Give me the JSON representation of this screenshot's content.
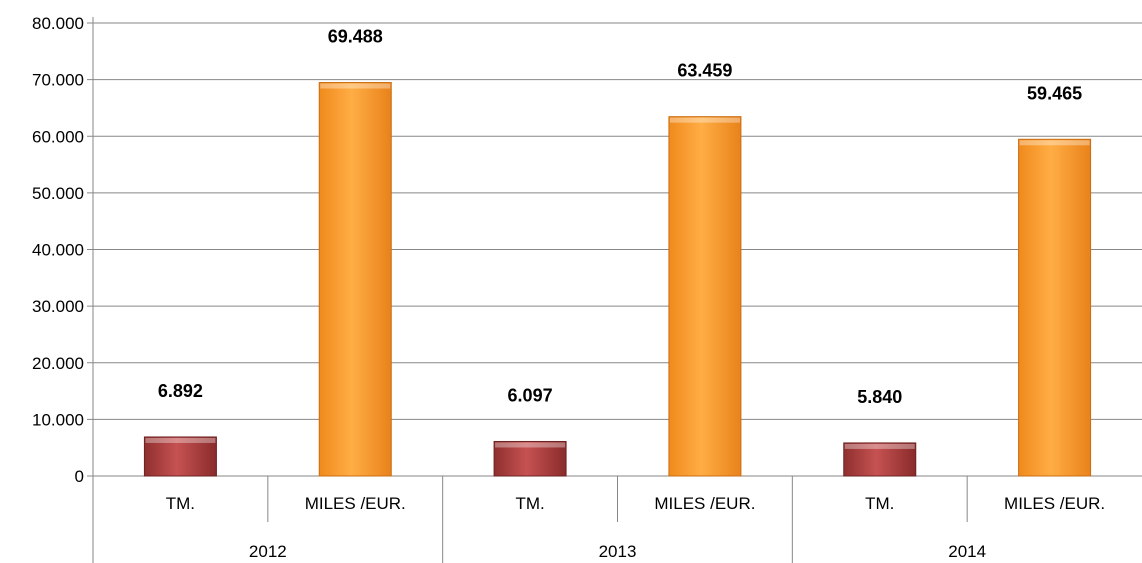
{
  "chart_data": {
    "type": "bar",
    "groups": [
      "2012",
      "2013",
      "2014"
    ],
    "categories": [
      "TM.",
      "MILES /EUR."
    ],
    "values": [
      [
        6892,
        69488
      ],
      [
        6097,
        63459
      ],
      [
        5840,
        59465
      ]
    ],
    "data_labels": [
      [
        "6.892",
        "69.488"
      ],
      [
        "6.097",
        "63.459"
      ],
      [
        "5.840",
        "59.465"
      ]
    ],
    "yticks": [
      "0",
      "10.000",
      "20.000",
      "30.000",
      "40.000",
      "50.000",
      "60.000",
      "70.000",
      "80.000"
    ],
    "ylim": [
      0,
      80000
    ],
    "grid": true,
    "legend": "none",
    "colors": {
      "TM.": "#a83c3c",
      "MILES /EUR.": "#ff9a2e"
    }
  }
}
